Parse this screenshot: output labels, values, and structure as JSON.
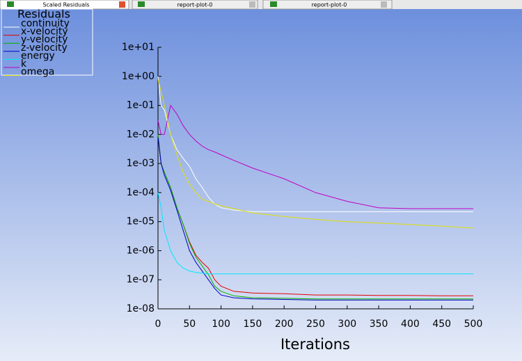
{
  "tabs": [
    "Scaled Residuals",
    "report-plot-0",
    "report-plot-0"
  ],
  "chart_data": {
    "type": "line",
    "log_y": true,
    "grid": false,
    "legend": "top-left",
    "legend_title": "Residuals",
    "xlabel": "Iterations",
    "x": [
      0,
      5,
      10,
      20,
      30,
      40,
      50,
      60,
      70,
      80,
      90,
      100,
      120,
      150,
      200,
      250,
      300,
      350,
      400,
      450,
      500
    ],
    "xlim": [
      0,
      500
    ],
    "xticks": [
      0,
      50,
      100,
      150,
      200,
      250,
      300,
      350,
      400,
      450,
      500
    ],
    "ylim": [
      1e-08,
      10
    ],
    "yticks": [
      {
        "value": 10,
        "label": "1e+01"
      },
      {
        "value": 1,
        "label": "1e+00"
      },
      {
        "value": 0.1,
        "label": "1e-01"
      },
      {
        "value": 0.01,
        "label": "1e-02"
      },
      {
        "value": 0.001,
        "label": "1e-03"
      },
      {
        "value": 0.0001,
        "label": "1e-04"
      },
      {
        "value": 1e-05,
        "label": "1e-05"
      },
      {
        "value": 1e-06,
        "label": "1e-06"
      },
      {
        "value": 1e-07,
        "label": "1e-07"
      },
      {
        "value": 1e-08,
        "label": "1e-08"
      }
    ],
    "series": [
      {
        "name": "continuity",
        "color": "#ffffff",
        "values": [
          1,
          0.1,
          0.07,
          0.01,
          0.003,
          0.0015,
          0.0008,
          0.0003,
          0.00015,
          7e-05,
          4e-05,
          3e-05,
          2.5e-05,
          2.2e-05,
          2.2e-05,
          2.2e-05,
          2.2e-05,
          2.2e-05,
          2.2e-05,
          2.2e-05,
          2.2e-05
        ]
      },
      {
        "name": "x-velocity",
        "color": "#e00000",
        "values": [
          0.01,
          0.001,
          0.0005,
          0.00015,
          3e-05,
          8e-06,
          2e-06,
          7e-07,
          4e-07,
          2.5e-07,
          1e-07,
          6e-08,
          4e-08,
          3.5e-08,
          3.3e-08,
          3e-08,
          3e-08,
          2.9e-08,
          2.9e-08,
          2.8e-08,
          2.8e-08
        ]
      },
      {
        "name": "y-velocity",
        "color": "#00b000",
        "values": [
          0.01,
          0.001,
          0.0005,
          0.00015,
          3e-05,
          8e-06,
          1.8e-06,
          6e-07,
          3e-07,
          1.5e-07,
          6e-08,
          4e-08,
          2.8e-08,
          2.4e-08,
          2.3e-08,
          2.2e-08,
          2.2e-08,
          2.2e-08,
          2.2e-08,
          2.2e-08,
          2.2e-08
        ]
      },
      {
        "name": "z-velocity",
        "color": "#0000c0",
        "values": [
          0.008,
          0.001,
          0.0004,
          0.00012,
          2.5e-05,
          5e-06,
          1e-06,
          4e-07,
          2e-07,
          1e-07,
          5e-08,
          3e-08,
          2.4e-08,
          2.2e-08,
          2.1e-08,
          2e-08,
          2e-08,
          2e-08,
          2e-08,
          2e-08,
          2e-08
        ]
      },
      {
        "name": "energy",
        "color": "#00e8ff",
        "values": [
          0.0001,
          3e-05,
          5e-06,
          1e-06,
          4e-07,
          2.5e-07,
          2e-07,
          1.8e-07,
          1.7e-07,
          1.6e-07,
          1.6e-07,
          1.6e-07,
          1.6e-07,
          1.6e-07,
          1.6e-07,
          1.6e-07,
          1.6e-07,
          1.6e-07,
          1.6e-07,
          1.6e-07,
          1.6e-07
        ]
      },
      {
        "name": "k",
        "color": "#c000c0",
        "values": [
          0.03,
          0.01,
          0.01,
          0.1,
          0.05,
          0.02,
          0.01,
          0.006,
          0.004,
          0.003,
          0.0025,
          0.002,
          0.0013,
          0.0007,
          0.0003,
          0.0001,
          5e-05,
          3e-05,
          2.8e-05,
          2.8e-05,
          2.8e-05
        ]
      },
      {
        "name": "omega",
        "color": "#e0e000",
        "values": [
          0.8,
          0.3,
          0.1,
          0.01,
          0.002,
          0.0005,
          0.0002,
          0.0001,
          6e-05,
          5e-05,
          4e-05,
          3.5e-05,
          2.8e-05,
          2e-05,
          1.5e-05,
          1.2e-05,
          1e-05,
          9e-06,
          8e-06,
          7e-06,
          6e-06
        ]
      }
    ]
  }
}
